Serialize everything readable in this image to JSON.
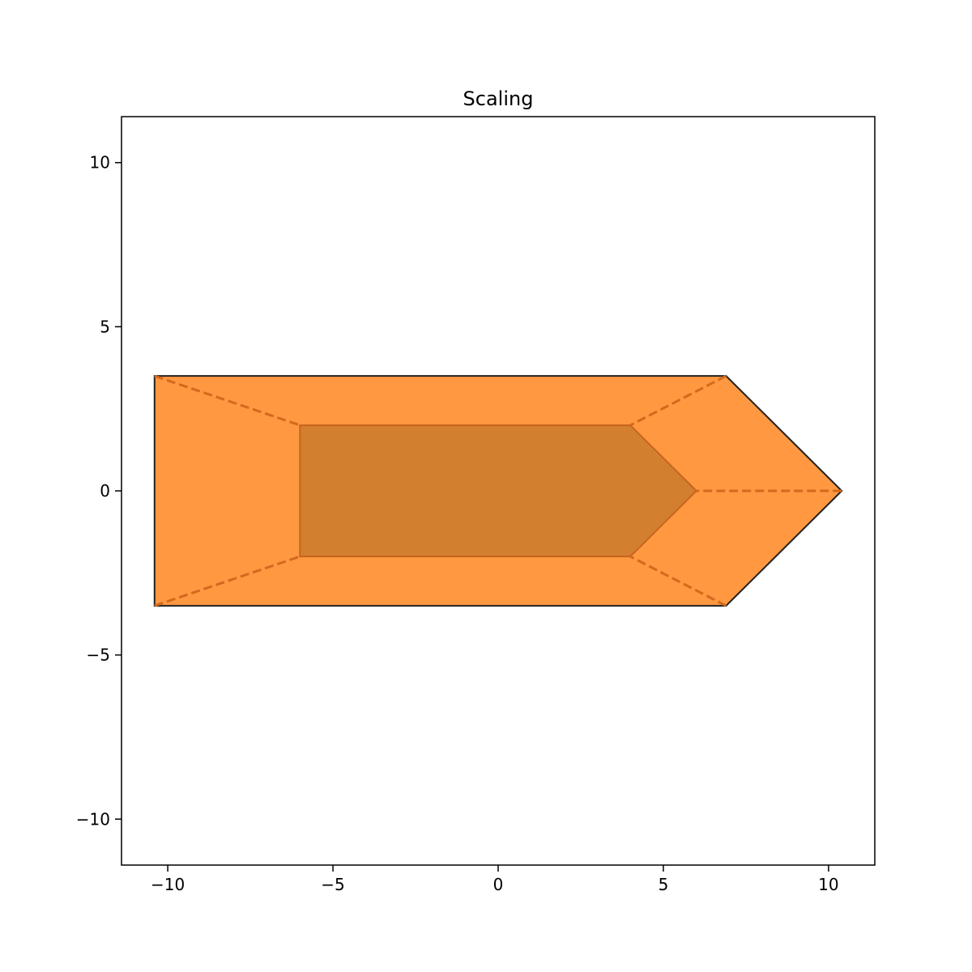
{
  "chart_data": {
    "type": "polygon",
    "title": "Scaling",
    "xlabel": "",
    "ylabel": "",
    "xlim": [
      -11.4,
      11.4
    ],
    "ylim": [
      -11.4,
      11.4
    ],
    "x_ticks": [
      -10,
      -5,
      0,
      5,
      10
    ],
    "x_tick_labels": [
      "−10",
      "−5",
      "0",
      "5",
      "10"
    ],
    "y_ticks": [
      -10,
      -5,
      0,
      5,
      10
    ],
    "y_tick_labels": [
      "−10",
      "−5",
      "0",
      "5",
      "10"
    ],
    "grid": false,
    "shapes": [
      {
        "role": "scaled",
        "vertices": [
          [
            -10.4,
            3.5
          ],
          [
            6.9,
            3.5
          ],
          [
            10.4,
            0
          ],
          [
            6.9,
            -3.5
          ],
          [
            -10.4,
            -3.5
          ]
        ],
        "fill": "#ff9840",
        "edge": "#222222"
      },
      {
        "role": "original",
        "vertices": [
          [
            -6,
            2
          ],
          [
            4,
            2
          ],
          [
            6,
            0
          ],
          [
            4,
            -2
          ],
          [
            -6,
            -2
          ]
        ],
        "fill": "#d27f30",
        "edge": "#c8641e"
      }
    ],
    "scaling_lines": {
      "style": "dashed",
      "color": "#d2691e",
      "segments": [
        [
          [
            -10.4,
            3.5
          ],
          [
            -6,
            2
          ]
        ],
        [
          [
            6.9,
            3.5
          ],
          [
            4,
            2
          ]
        ],
        [
          [
            10.4,
            0
          ],
          [
            6,
            0
          ]
        ],
        [
          [
            6.9,
            -3.5
          ],
          [
            4,
            -2
          ]
        ],
        [
          [
            -10.4,
            -3.5
          ],
          [
            -6,
            -2
          ]
        ]
      ]
    }
  }
}
